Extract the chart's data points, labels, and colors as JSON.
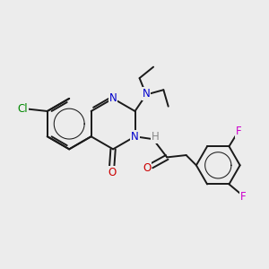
{
  "bg_color": "#ececec",
  "bond_color": "#1a1a1a",
  "bond_width": 1.4,
  "atom_colors": {
    "C": "#1a1a1a",
    "N": "#0000cc",
    "O": "#cc0000",
    "Cl": "#008800",
    "F": "#cc00cc",
    "H": "#888888"
  },
  "font_size": 8.5,
  "figsize": [
    3.0,
    3.0
  ],
  "dpi": 100
}
